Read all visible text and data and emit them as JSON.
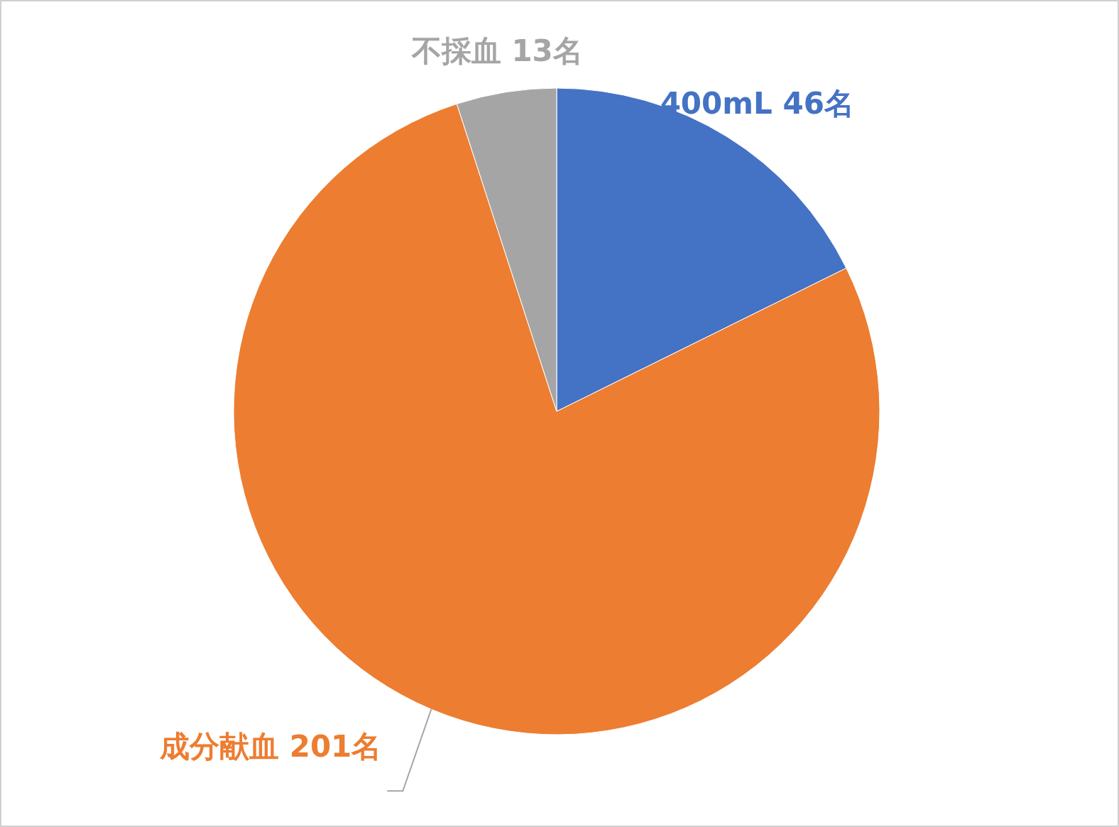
{
  "chart_data": {
    "type": "pie",
    "categories": [
      "400mL",
      "成分献血",
      "不採血"
    ],
    "values": [
      46,
      201,
      13
    ],
    "value_labels": [
      "46名",
      "201名",
      "13名"
    ],
    "colors": [
      "#4472c4",
      "#ed7d31",
      "#a5a5a5"
    ]
  }
}
